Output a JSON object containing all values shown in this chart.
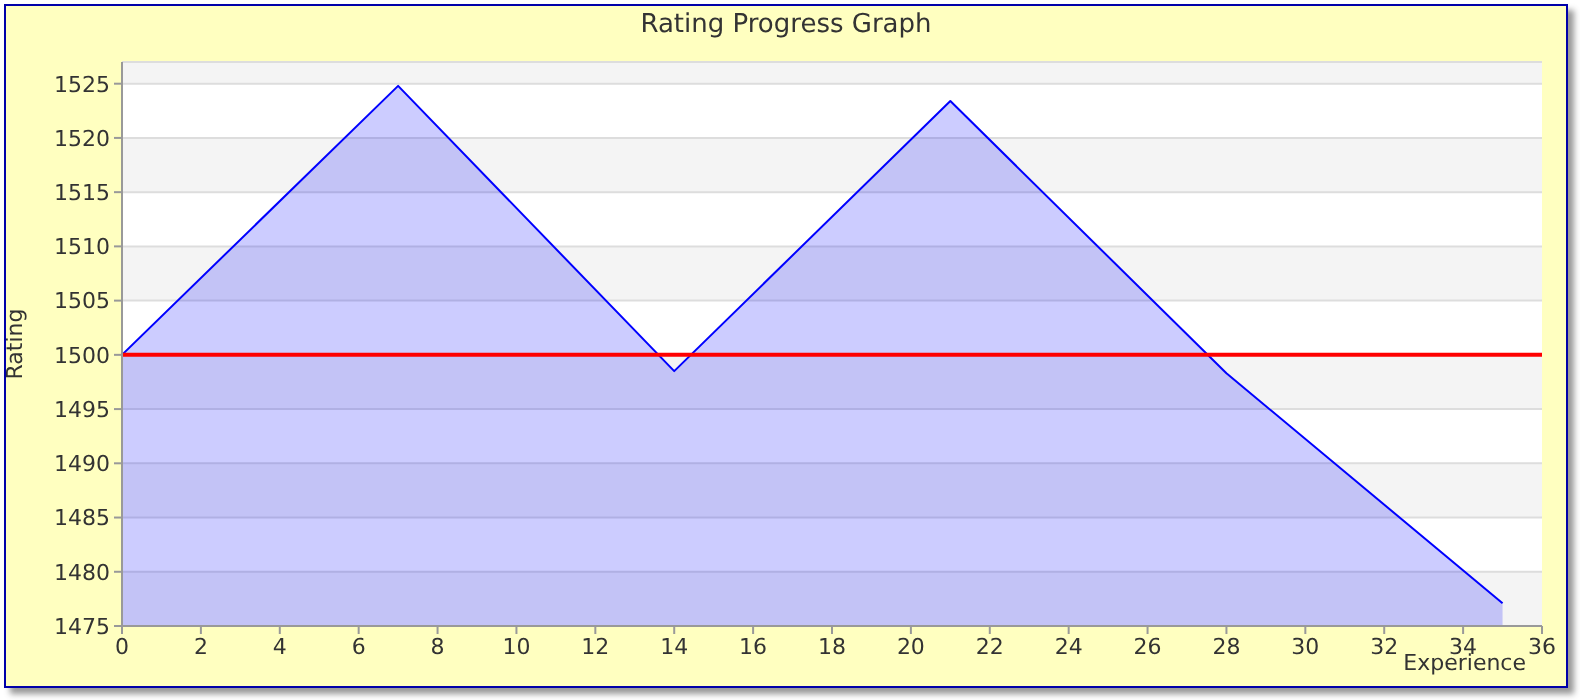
{
  "chart_data": {
    "type": "area",
    "title": "Rating Progress Graph",
    "xlabel": "Experience",
    "ylabel": "Rating",
    "x": [
      0,
      7,
      14,
      21,
      28,
      35
    ],
    "series": [
      {
        "color": "#0000ff",
        "values": [
          1500,
          1524.8,
          1498.5,
          1523.4,
          1498.3,
          1477.1
        ]
      }
    ],
    "xlim": [
      0,
      36
    ],
    "xticks": [
      0,
      2,
      4,
      6,
      8,
      10,
      12,
      14,
      16,
      18,
      20,
      22,
      24,
      26,
      28,
      30,
      32,
      34,
      36
    ],
    "ylim": [
      1475,
      1527
    ],
    "yticks": [
      1475,
      1480,
      1485,
      1490,
      1495,
      1500,
      1505,
      1510,
      1515,
      1520,
      1525
    ],
    "ref_lines": [
      {
        "axis": "y",
        "value": 1500,
        "color": "#ff0000"
      }
    ],
    "grid": "y",
    "legend": false,
    "marker": "none"
  }
}
